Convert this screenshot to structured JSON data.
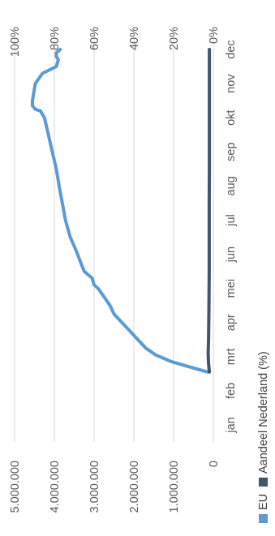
{
  "chart_data": {
    "type": "line",
    "orientation": "rotated-90-clockwise",
    "categories": [
      "jan",
      "feb",
      "mrt",
      "apr",
      "mei",
      "jun",
      "jul",
      "aug",
      "sep",
      "okt",
      "nov",
      "dec"
    ],
    "left_axis": {
      "ticks": [
        "0",
        "1.000.000",
        "2.000.000",
        "3.000.000",
        "4.000.000",
        "5.000.000"
      ],
      "range": [
        0,
        5000000
      ]
    },
    "right_axis": {
      "ticks": [
        "0%",
        "20%",
        "40%",
        "60%",
        "80%",
        "100%"
      ],
      "range": [
        0,
        100
      ]
    },
    "grid": true,
    "legend_position": "bottom",
    "series": [
      {
        "name": "EU",
        "axis": "left",
        "color": "#5b9bd5",
        "x": [
          2.05,
          2.2,
          2.35,
          2.55,
          2.75,
          3.0,
          3.25,
          3.5,
          3.75,
          4.0,
          4.25,
          4.5,
          4.6,
          4.8,
          5.0,
          5.3,
          5.6,
          6.0,
          6.5,
          7.0,
          7.5,
          8.0,
          8.5,
          9.0,
          9.5,
          9.7,
          9.75,
          9.85,
          10.0,
          10.5,
          10.8,
          11.0,
          11.2,
          11.3,
          11.4,
          11.5
        ],
        "y": [
          150000,
          600000,
          1050000,
          1450000,
          1700000,
          1900000,
          2100000,
          2300000,
          2500000,
          2600000,
          2750000,
          2900000,
          3000000,
          3050000,
          3250000,
          3350000,
          3450000,
          3600000,
          3720000,
          3800000,
          3880000,
          3950000,
          4050000,
          4150000,
          4250000,
          4350000,
          4480000,
          4550000,
          4550000,
          4480000,
          4300000,
          3950000,
          3900000,
          3950000,
          3950000,
          3850000
        ]
      },
      {
        "name": "Aandeel Nederland (%)",
        "axis": "right",
        "color": "#44546a",
        "x": [
          2.05,
          2.3,
          2.6,
          3.0,
          4.0,
          5.0,
          6.0,
          7.0,
          8.0,
          9.0,
          10.0,
          11.0,
          11.5
        ],
        "y": [
          2.0,
          2.4,
          2.6,
          2.4,
          2.2,
          2.1,
          2.1,
          2.1,
          2.0,
          2.0,
          2.0,
          2.0,
          2.0
        ]
      }
    ]
  }
}
